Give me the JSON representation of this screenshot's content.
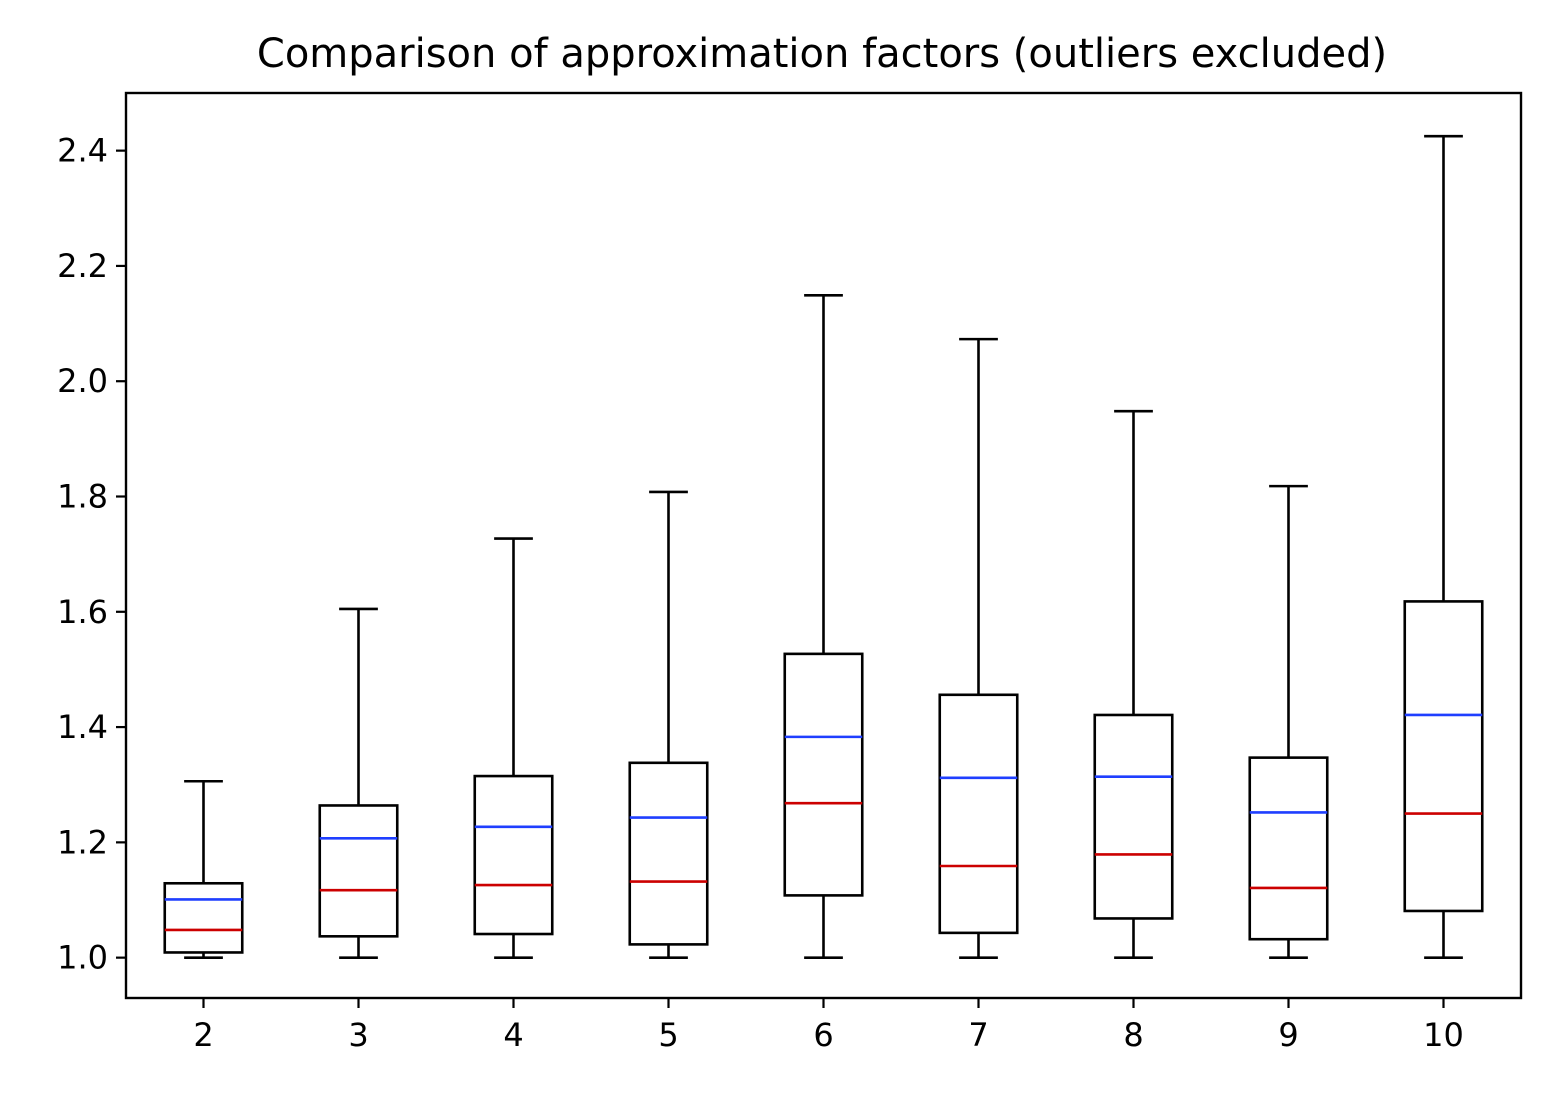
{
  "chart_data": {
    "type": "box",
    "title": "Comparison of approximation factors (outliers excluded)",
    "xlabel": "",
    "ylabel": "",
    "categories": [
      "2",
      "3",
      "4",
      "5",
      "6",
      "7",
      "8",
      "9",
      "10"
    ],
    "ylim": [
      0.93,
      2.5
    ],
    "yticks": [
      1.0,
      1.2,
      1.4,
      1.6,
      1.8,
      2.0,
      2.2,
      2.4
    ],
    "ytick_labels": [
      "1.0",
      "1.2",
      "1.4",
      "1.6",
      "1.8",
      "2.0",
      "2.2",
      "2.4"
    ],
    "grid": false,
    "boxes": [
      {
        "category": "2",
        "whisker_low": 1.0,
        "q1": 1.009,
        "median": 1.048,
        "mean": 1.101,
        "q3": 1.129,
        "whisker_high": 1.306
      },
      {
        "category": "3",
        "whisker_low": 1.0,
        "q1": 1.037,
        "median": 1.117,
        "mean": 1.207,
        "q3": 1.264,
        "whisker_high": 1.605
      },
      {
        "category": "4",
        "whisker_low": 1.0,
        "q1": 1.041,
        "median": 1.126,
        "mean": 1.227,
        "q3": 1.315,
        "whisker_high": 1.727
      },
      {
        "category": "5",
        "whisker_low": 1.0,
        "q1": 1.023,
        "median": 1.132,
        "mean": 1.243,
        "q3": 1.338,
        "whisker_high": 1.808
      },
      {
        "category": "6",
        "whisker_low": 1.0,
        "q1": 1.108,
        "median": 1.268,
        "mean": 1.383,
        "q3": 1.527,
        "whisker_high": 2.149
      },
      {
        "category": "7",
        "whisker_low": 1.0,
        "q1": 1.043,
        "median": 1.159,
        "mean": 1.312,
        "q3": 1.456,
        "whisker_high": 2.073
      },
      {
        "category": "8",
        "whisker_low": 1.0,
        "q1": 1.068,
        "median": 1.179,
        "mean": 1.314,
        "q3": 1.421,
        "whisker_high": 1.948
      },
      {
        "category": "9",
        "whisker_low": 1.0,
        "q1": 1.032,
        "median": 1.121,
        "mean": 1.252,
        "q3": 1.347,
        "whisker_high": 1.818
      },
      {
        "category": "10",
        "whisker_low": 1.0,
        "q1": 1.081,
        "median": 1.25,
        "mean": 1.421,
        "q3": 1.618,
        "whisker_high": 2.425
      }
    ],
    "colors": {
      "box": "#000000",
      "median": "#cc0000",
      "mean": "#1f3fff"
    }
  }
}
